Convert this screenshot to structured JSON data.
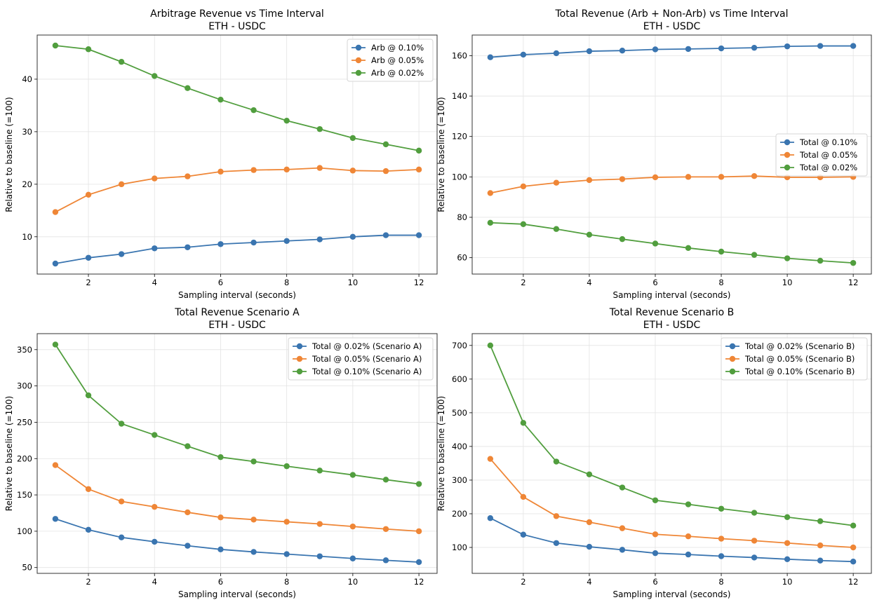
{
  "chart_data": [
    {
      "type": "line",
      "title": "Arbitrage Revenue vs Time Interval",
      "subtitle": "ETH - USDC",
      "xlabel": "Sampling interval (seconds)",
      "ylabel": "Relative to baseline (=100)",
      "x": [
        1,
        2,
        3,
        4,
        5,
        6,
        7,
        8,
        9,
        10,
        11,
        12
      ],
      "xlim": [
        0.45,
        12.55
      ],
      "ylim": [
        2.9,
        48.4
      ],
      "xticks": [
        2,
        4,
        6,
        8,
        10,
        12
      ],
      "yticks": [
        10,
        20,
        30,
        40
      ],
      "grid": true,
      "legend_position": "top-right",
      "series": [
        {
          "name": "Arb @ 0.10%",
          "color": "#3a75b0",
          "values": [
            4.9,
            6.0,
            6.7,
            7.8,
            8.0,
            8.6,
            8.9,
            9.2,
            9.5,
            10.0,
            10.3,
            10.3
          ]
        },
        {
          "name": "Arb @ 0.05%",
          "color": "#ef8636",
          "values": [
            14.7,
            18.0,
            20.0,
            21.1,
            21.5,
            22.4,
            22.7,
            22.8,
            23.1,
            22.6,
            22.5,
            22.8
          ]
        },
        {
          "name": "Arb @ 0.02%",
          "color": "#519e3e",
          "values": [
            46.4,
            45.7,
            43.3,
            40.6,
            38.3,
            36.1,
            34.1,
            32.1,
            30.5,
            28.8,
            27.6,
            26.4
          ]
        }
      ]
    },
    {
      "type": "line",
      "title": "Total Revenue (Arb + Non-Arb) vs Time Interval",
      "subtitle": "ETH - USDC",
      "xlabel": "Sampling interval (seconds)",
      "ylabel": "Relative to baseline (=100)",
      "x": [
        1,
        2,
        3,
        4,
        5,
        6,
        7,
        8,
        9,
        10,
        11,
        12
      ],
      "xlim": [
        0.45,
        12.55
      ],
      "ylim": [
        51.9,
        170.2
      ],
      "xticks": [
        2,
        4,
        6,
        8,
        10,
        12
      ],
      "yticks": [
        60,
        80,
        100,
        120,
        140,
        160
      ],
      "grid": true,
      "legend_position": "center-right",
      "series": [
        {
          "name": "Total @ 0.10%",
          "color": "#3a75b0",
          "values": [
            159.2,
            160.5,
            161.2,
            162.2,
            162.5,
            163.1,
            163.3,
            163.6,
            163.9,
            164.6,
            164.8,
            164.8
          ]
        },
        {
          "name": "Total @ 0.05%",
          "color": "#ef8636",
          "values": [
            92.0,
            95.3,
            97.1,
            98.4,
            98.9,
            99.8,
            100.0,
            100.0,
            100.4,
            99.8,
            99.8,
            100.0
          ]
        },
        {
          "name": "Total @ 0.02%",
          "color": "#519e3e",
          "values": [
            77.3,
            76.6,
            74.2,
            71.4,
            69.2,
            67.0,
            64.8,
            63.0,
            61.4,
            59.7,
            58.5,
            57.4
          ]
        }
      ]
    },
    {
      "type": "line",
      "title": "Total Revenue Scenario A",
      "subtitle": "ETH - USDC",
      "xlabel": "Sampling interval (seconds)",
      "ylabel": "Relative to baseline (=100)",
      "x": [
        1,
        2,
        3,
        4,
        5,
        6,
        7,
        8,
        9,
        10,
        11,
        12
      ],
      "xlim": [
        0.45,
        12.55
      ],
      "ylim": [
        42,
        372
      ],
      "xticks": [
        2,
        4,
        6,
        8,
        10,
        12
      ],
      "yticks": [
        50,
        100,
        150,
        200,
        250,
        300,
        350
      ],
      "grid": true,
      "legend_position": "top-right",
      "series": [
        {
          "name": "Total @ 0.02% (Scenario A)",
          "color": "#3a75b0",
          "values": [
            117,
            102,
            91.5,
            85.5,
            80,
            75,
            71.5,
            68.5,
            65.5,
            62.5,
            60,
            57.5
          ]
        },
        {
          "name": "Total @ 0.05% (Scenario A)",
          "color": "#ef8636",
          "values": [
            191,
            158,
            141,
            133.5,
            126,
            119,
            116,
            113,
            110,
            106.5,
            103,
            100
          ]
        },
        {
          "name": "Total @ 0.10% (Scenario A)",
          "color": "#519e3e",
          "values": [
            357,
            287,
            248,
            232.5,
            217,
            202,
            196,
            189.5,
            183.5,
            177.5,
            171,
            165
          ]
        }
      ]
    },
    {
      "type": "line",
      "title": "Total Revenue Scenario B",
      "subtitle": "ETH - USDC",
      "xlabel": "Sampling interval (seconds)",
      "ylabel": "Relative to baseline (=100)",
      "x": [
        1,
        2,
        3,
        4,
        5,
        6,
        7,
        8,
        9,
        10,
        11,
        12
      ],
      "xlim": [
        0.45,
        12.55
      ],
      "ylim": [
        23,
        735
      ],
      "xticks": [
        2,
        4,
        6,
        8,
        10,
        12
      ],
      "yticks": [
        100,
        200,
        300,
        400,
        500,
        600,
        700
      ],
      "grid": true,
      "legend_position": "top-right",
      "series": [
        {
          "name": "Total @ 0.02% (Scenario B)",
          "color": "#3a75b0",
          "values": [
            187,
            138,
            113,
            102,
            93,
            83,
            79,
            74,
            70,
            65,
            61,
            58
          ]
        },
        {
          "name": "Total @ 0.05% (Scenario B)",
          "color": "#ef8636",
          "values": [
            363,
            250,
            193,
            175,
            157,
            139,
            133,
            126,
            120,
            113,
            106,
            100
          ]
        },
        {
          "name": "Total @ 0.10% (Scenario B)",
          "color": "#519e3e",
          "values": [
            700,
            470,
            355,
            317,
            278,
            240,
            228,
            215,
            203,
            190,
            178,
            165
          ]
        }
      ]
    }
  ]
}
